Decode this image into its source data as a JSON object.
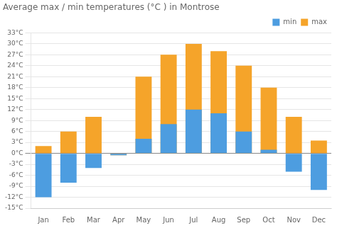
{
  "chart_data": {
    "type": "bar",
    "title": "Average max / min temperatures (°C ) in Montrose",
    "categories": [
      "Jan",
      "Feb",
      "Mar",
      "Apr",
      "May",
      "Jun",
      "Jul",
      "Aug",
      "Sep",
      "Oct",
      "Nov",
      "Dec"
    ],
    "series": [
      {
        "name": "min",
        "color": "#4d9de0",
        "values": [
          -12,
          -8,
          -4,
          -0.5,
          4,
          8,
          12,
          11,
          6,
          1,
          -5,
          -10
        ]
      },
      {
        "name": "max",
        "color": "#f5a42a",
        "values": [
          2,
          6,
          10,
          -0.5,
          21,
          27,
          30,
          28,
          24,
          18,
          10,
          3.5
        ]
      }
    ],
    "ylim": [
      -15,
      33
    ],
    "yticks": [
      {
        "value": -15,
        "label": "-15°C"
      },
      {
        "value": -12,
        "label": "-12°C"
      },
      {
        "value": -9,
        "label": "-9°C"
      },
      {
        "value": -6,
        "label": "-6°C"
      },
      {
        "value": -3,
        "label": "-3°C"
      },
      {
        "value": 0,
        "label": "0°C"
      },
      {
        "value": 3,
        "label": "3°C"
      },
      {
        "value": 6,
        "label": "6°C"
      },
      {
        "value": 9,
        "label": "9°C"
      },
      {
        "value": 12,
        "label": "12°C"
      },
      {
        "value": 15,
        "label": "15°C"
      },
      {
        "value": 18,
        "label": "18°C"
      },
      {
        "value": 21,
        "label": "21°C"
      },
      {
        "value": 24,
        "label": "24°C"
      },
      {
        "value": 27,
        "label": "27°C"
      },
      {
        "value": 30,
        "label": "30°C"
      },
      {
        "value": 33,
        "label": "33°C"
      }
    ],
    "grid": true,
    "legend": "upper right"
  }
}
